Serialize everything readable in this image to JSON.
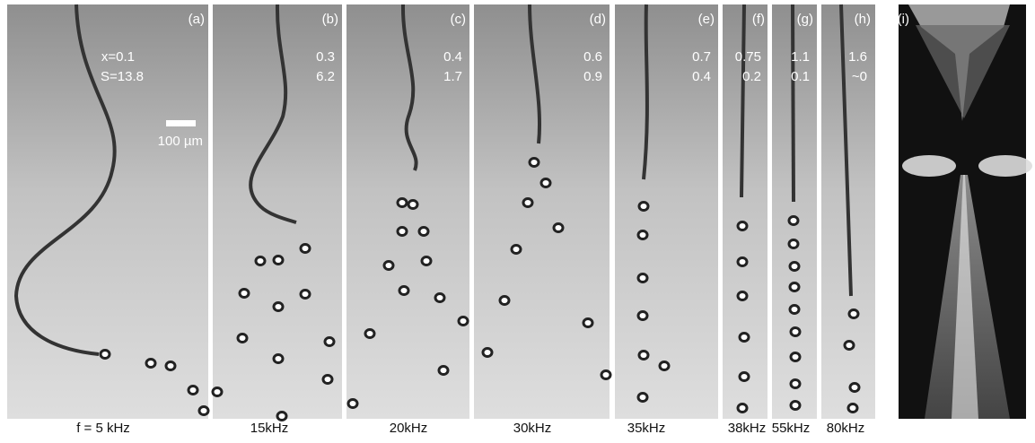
{
  "panels": [
    {
      "label": "(a)",
      "x": "x=0.1",
      "S": "S=13.8",
      "frequency": "f = 5 kHz",
      "scale_bar": "100 µm"
    },
    {
      "label": "(b)",
      "x": "0.3",
      "S": "6.2",
      "frequency": "15kHz"
    },
    {
      "label": "(c)",
      "x": "0.4",
      "S": "1.7",
      "frequency": "20kHz"
    },
    {
      "label": "(d)",
      "x": "0.6",
      "S": "0.9",
      "frequency": "30kHz"
    },
    {
      "label": "(e)",
      "x": "0.7",
      "S": "0.4",
      "frequency": "35kHz"
    },
    {
      "label": "(f)",
      "x": "0.75",
      "S": "0.2",
      "frequency": "38kHz"
    },
    {
      "label": "(g)",
      "x": "1.1",
      "S": "0.1",
      "frequency": "55kHz"
    },
    {
      "label": "(h)",
      "x": "1.6",
      "S": "~0",
      "frequency": "80kHz"
    },
    {
      "label": "(i)"
    }
  ]
}
